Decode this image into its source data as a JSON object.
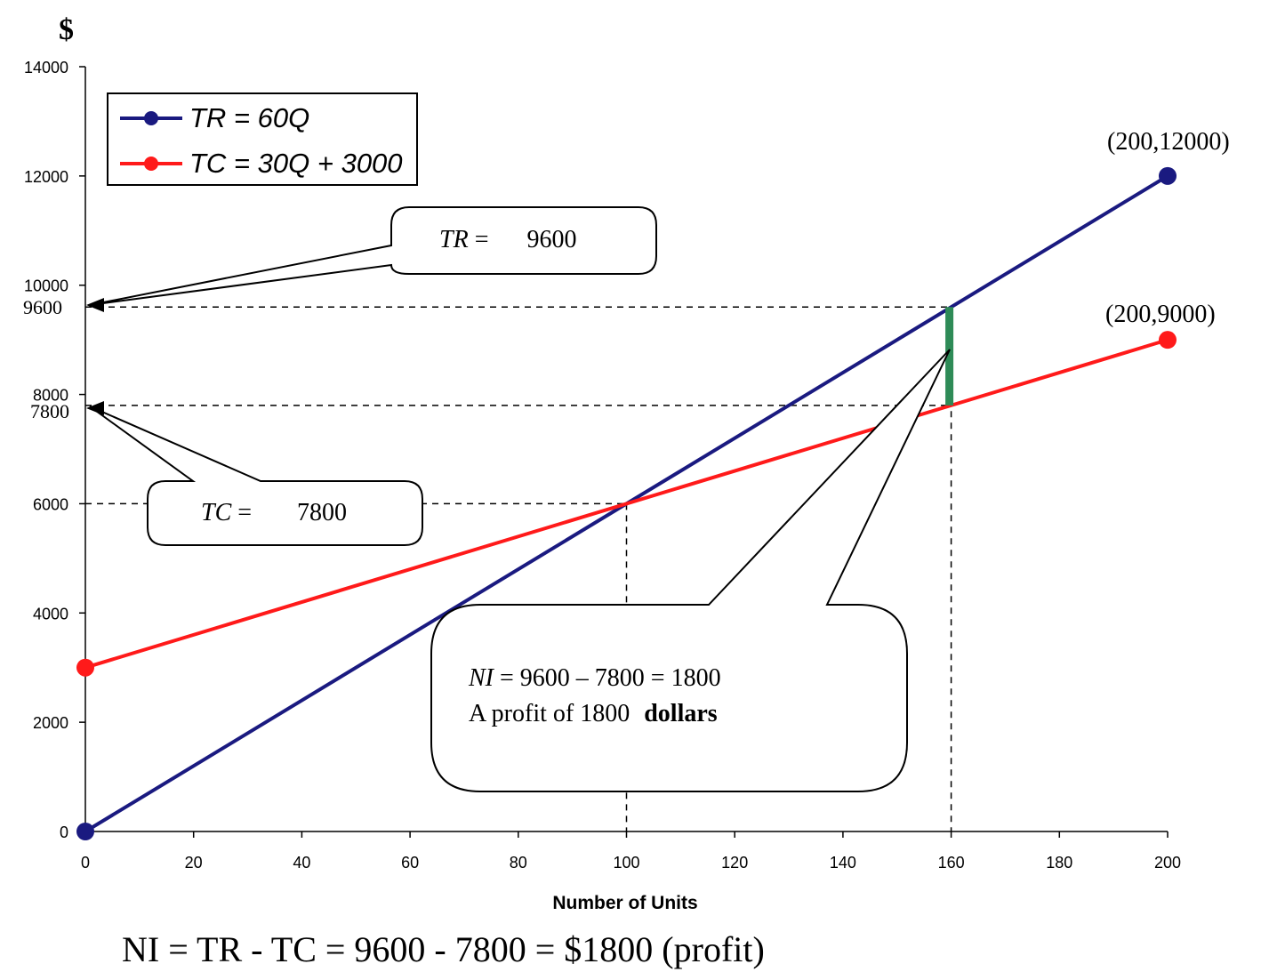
{
  "chart_data": {
    "type": "line",
    "title": "",
    "xlabel": "Number of Units",
    "ylabel": "$",
    "xlim": [
      0,
      200
    ],
    "ylim": [
      0,
      14000
    ],
    "x_ticks": [
      0,
      20,
      40,
      60,
      80,
      100,
      120,
      140,
      160,
      180,
      200
    ],
    "y_ticks": [
      0,
      2000,
      4000,
      6000,
      8000,
      10000,
      12000,
      14000
    ],
    "series": [
      {
        "name": "TR = 60Q",
        "color": "#1a1a80",
        "points": [
          [
            0,
            0
          ],
          [
            200,
            12000
          ]
        ]
      },
      {
        "name": "TC = 30Q + 3000",
        "color": "#ff1a1a",
        "points": [
          [
            0,
            3000
          ],
          [
            200,
            9000
          ]
        ]
      }
    ],
    "extra_y_ticks": [
      "9600",
      "7800"
    ],
    "point_labels": [
      "(200,12000)",
      "(200,9000)"
    ],
    "profit_segment": {
      "x": 160,
      "y_low": 7800,
      "y_high": 9600,
      "color": "#2e8b57"
    },
    "break_even": {
      "x": 100,
      "y": 6000
    },
    "callouts": {
      "tr": {
        "label": "TR",
        "eq": " = ",
        "value": "9600"
      },
      "tc": {
        "label": "TC",
        "eq": " = ",
        "value": "7800"
      },
      "ni": {
        "label": "NI",
        "line1_rest": " = 9600 – 7800 = 1800",
        "line2": "A profit of 1800",
        "line2_bold": "dollars"
      }
    },
    "footer": "NI = TR - TC = 9600 - 7800 = $1800 (profit)"
  }
}
